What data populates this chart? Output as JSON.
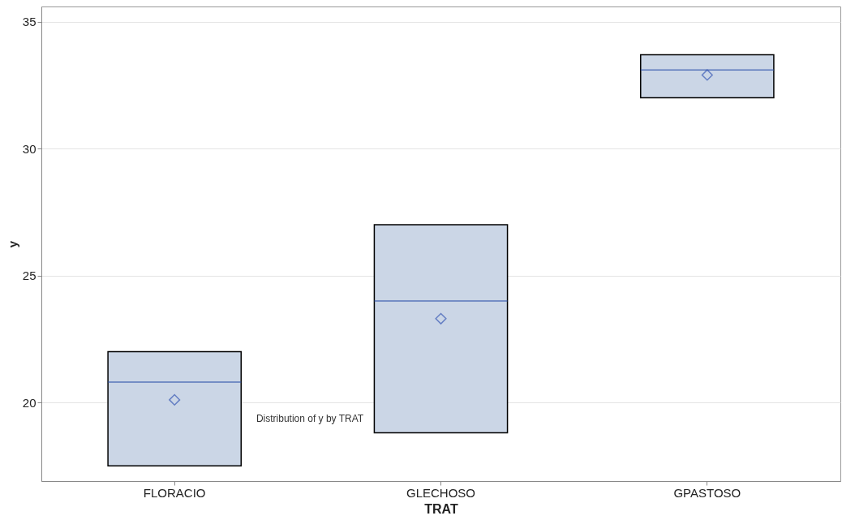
{
  "chart_data": {
    "type": "box",
    "xlabel": "TRAT",
    "ylabel": "y",
    "categories": [
      "FLORACIO",
      "GLECHOSO",
      "GPASTOSO"
    ],
    "boxes": [
      {
        "low": 17.5,
        "q1": 17.5,
        "median": 20.8,
        "q3": 22,
        "high": 22,
        "mean": 20.1
      },
      {
        "low": 18.8,
        "q1": 18.8,
        "median": 24,
        "q3": 27,
        "high": 27,
        "mean": 23.3
      },
      {
        "low": 32,
        "q1": 32,
        "median": 33.1,
        "q3": 33.7,
        "high": 33.7,
        "mean": 32.9
      }
    ],
    "color": "#cbd6e6",
    "ylim": [
      16.9,
      35.6
    ],
    "yticks": [
      20,
      25,
      30,
      35
    ],
    "grid": "y",
    "annotations": [
      "Distribution of y by TRAT"
    ]
  }
}
